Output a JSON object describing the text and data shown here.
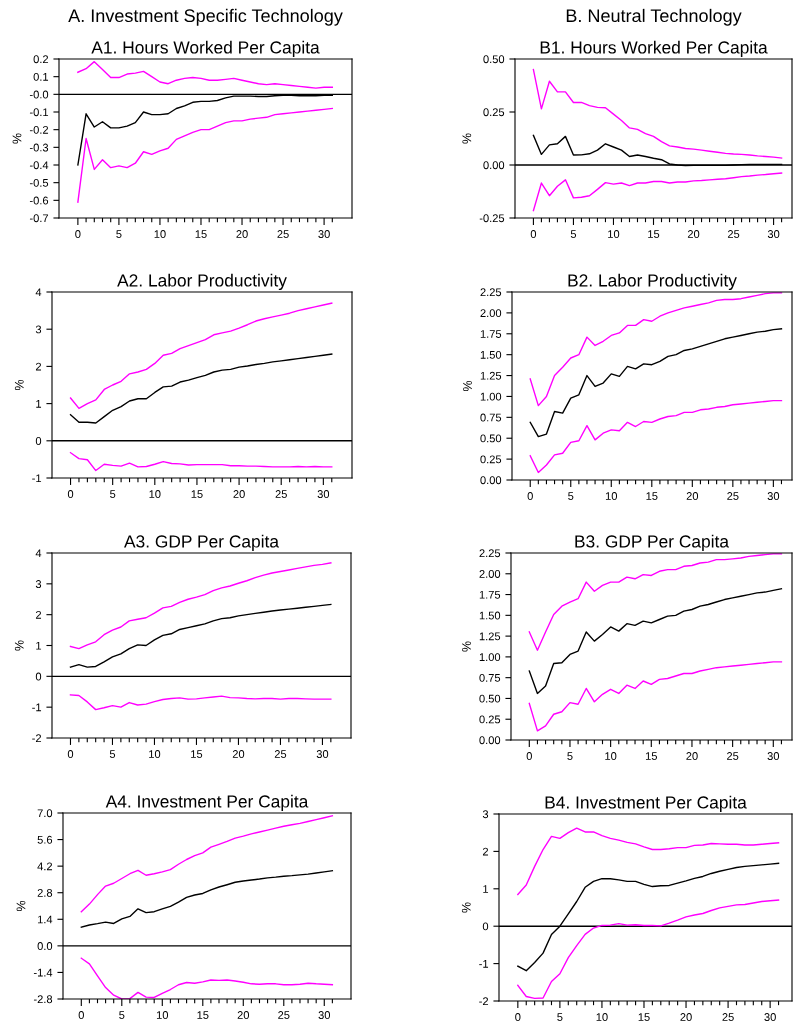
{
  "chart_data": [
    {
      "type": "line",
      "annotations": [
        "A. Investment Specific Technology"
      ],
      "title": "A1. Hours Worked Per Capita",
      "ylabel": "%",
      "x": [
        0,
        1,
        2,
        3,
        4,
        5,
        6,
        7,
        8,
        9,
        10,
        11,
        12,
        13,
        14,
        15,
        16,
        17,
        18,
        19,
        20,
        21,
        22,
        23,
        24,
        25,
        26,
        27,
        28,
        29,
        30,
        31
      ],
      "xlim": [
        -2.3,
        33.4
      ],
      "xticks": [
        0,
        {
          "value": 1,
          "label": null
        },
        {
          "value": 2,
          "label": null
        },
        {
          "value": 3,
          "label": null
        },
        {
          "value": 4,
          "label": null
        },
        5,
        {
          "value": 6,
          "label": null
        },
        {
          "value": 7,
          "label": null
        },
        {
          "value": 8,
          "label": null
        },
        {
          "value": 9,
          "label": null
        },
        10,
        {
          "value": 11,
          "label": null
        },
        {
          "value": 12,
          "label": null
        },
        {
          "value": 13,
          "label": null
        },
        {
          "value": 14,
          "label": null
        },
        15,
        {
          "value": 16,
          "label": null
        },
        {
          "value": 17,
          "label": null
        },
        {
          "value": 18,
          "label": null
        },
        {
          "value": 19,
          "label": null
        },
        20,
        {
          "value": 21,
          "label": null
        },
        {
          "value": 22,
          "label": null
        },
        {
          "value": 23,
          "label": null
        },
        {
          "value": 24,
          "label": null
        },
        25,
        {
          "value": 26,
          "label": null
        },
        {
          "value": 27,
          "label": null
        },
        {
          "value": 28,
          "label": null
        },
        {
          "value": 29,
          "label": null
        },
        30,
        {
          "value": 31,
          "label": null
        }
      ],
      "ylim": [
        -0.7,
        0.2
      ],
      "yticks": [
        0.2,
        0.1,
        {
          "value": 0,
          "label": "-0.0"
        },
        -0.1,
        -0.2,
        -0.3,
        -0.4,
        -0.5,
        -0.6,
        -0.7
      ],
      "ref_lines": [
        {
          "axis": "y",
          "value": 0,
          "color": "#000000"
        }
      ],
      "series": [
        {
          "color": "#ff00ff",
          "values": [
            0.125,
            0.145,
            0.185,
            0.14,
            0.095,
            0.095,
            0.115,
            0.12,
            0.13,
            0.1,
            0.07,
            0.06,
            0.08,
            0.09,
            0.095,
            0.09,
            0.08,
            0.08,
            0.085,
            0.09,
            0.08,
            0.07,
            0.06,
            0.055,
            0.06,
            0.055,
            0.05,
            0.045,
            0.04,
            0.035,
            0.04,
            0.04
          ]
        },
        {
          "color": "#000000",
          "values": [
            -0.4,
            -0.11,
            -0.185,
            -0.155,
            -0.19,
            -0.19,
            -0.18,
            -0.16,
            -0.1,
            -0.115,
            -0.115,
            -0.11,
            -0.08,
            -0.065,
            -0.045,
            -0.04,
            -0.04,
            -0.035,
            -0.02,
            -0.01,
            -0.01,
            -0.01,
            -0.012,
            -0.012,
            -0.008,
            -0.005,
            -0.005,
            -0.008,
            -0.008,
            -0.008,
            -0.006,
            -0.005
          ]
        },
        {
          "color": "#ff00ff",
          "values": [
            -0.61,
            -0.25,
            -0.425,
            -0.37,
            -0.415,
            -0.405,
            -0.415,
            -0.39,
            -0.325,
            -0.34,
            -0.32,
            -0.305,
            -0.255,
            -0.235,
            -0.215,
            -0.2,
            -0.2,
            -0.18,
            -0.16,
            -0.15,
            -0.15,
            -0.14,
            -0.135,
            -0.13,
            -0.115,
            -0.11,
            -0.105,
            -0.1,
            -0.095,
            -0.09,
            -0.085,
            -0.08
          ]
        }
      ]
    },
    {
      "type": "line",
      "annotations": [
        "B. Neutral Technology"
      ],
      "title": "B1. Hours Worked Per Capita",
      "ylabel": "%",
      "x": [
        0,
        1,
        2,
        3,
        4,
        5,
        6,
        7,
        8,
        9,
        10,
        11,
        12,
        13,
        14,
        15,
        16,
        17,
        18,
        19,
        20,
        21,
        22,
        23,
        24,
        25,
        26,
        27,
        28,
        29,
        30,
        31
      ],
      "xlim": [
        -2.3,
        32.3
      ],
      "xticks": [
        0,
        {
          "value": 1,
          "label": null
        },
        {
          "value": 2,
          "label": null
        },
        {
          "value": 3,
          "label": null
        },
        {
          "value": 4,
          "label": null
        },
        5,
        {
          "value": 6,
          "label": null
        },
        {
          "value": 7,
          "label": null
        },
        {
          "value": 8,
          "label": null
        },
        {
          "value": 9,
          "label": null
        },
        10,
        {
          "value": 11,
          "label": null
        },
        {
          "value": 12,
          "label": null
        },
        {
          "value": 13,
          "label": null
        },
        {
          "value": 14,
          "label": null
        },
        15,
        {
          "value": 16,
          "label": null
        },
        {
          "value": 17,
          "label": null
        },
        {
          "value": 18,
          "label": null
        },
        {
          "value": 19,
          "label": null
        },
        20,
        {
          "value": 21,
          "label": null
        },
        {
          "value": 22,
          "label": null
        },
        {
          "value": 23,
          "label": null
        },
        {
          "value": 24,
          "label": null
        },
        25,
        {
          "value": 26,
          "label": null
        },
        {
          "value": 27,
          "label": null
        },
        {
          "value": 28,
          "label": null
        },
        {
          "value": 29,
          "label": null
        },
        30,
        {
          "value": 31,
          "label": null
        }
      ],
      "ylim": [
        -0.25,
        0.5
      ],
      "yticks": [
        {
          "value": 0.5,
          "label": "0.50"
        },
        0.25,
        {
          "value": 0,
          "label": "0.00"
        },
        -0.25
      ],
      "ref_lines": [
        {
          "axis": "y",
          "value": 0,
          "color": "#000000"
        }
      ],
      "series": [
        {
          "color": "#ff00ff",
          "values": [
            0.45,
            0.265,
            0.395,
            0.345,
            0.345,
            0.295,
            0.295,
            0.28,
            0.272,
            0.27,
            0.24,
            0.21,
            0.175,
            0.168,
            0.148,
            0.135,
            0.11,
            0.09,
            0.085,
            0.078,
            0.075,
            0.07,
            0.065,
            0.06,
            0.055,
            0.052,
            0.05,
            0.047,
            0.043,
            0.04,
            0.037,
            0.033
          ]
        },
        {
          "color": "#000000",
          "values": [
            0.14,
            0.05,
            0.095,
            0.1,
            0.135,
            0.047,
            0.048,
            0.053,
            0.07,
            0.1,
            0.085,
            0.07,
            0.04,
            0.047,
            0.04,
            0.032,
            0.025,
            0.005,
            0.0,
            -0.003,
            -0.002,
            -0.002,
            -0.002,
            -0.002,
            -0.002,
            0.0,
            0.002,
            0.003,
            0.003,
            0.003,
            0.003,
            0.003
          ]
        },
        {
          "color": "#ff00ff",
          "values": [
            -0.215,
            -0.085,
            -0.145,
            -0.1,
            -0.07,
            -0.155,
            -0.152,
            -0.145,
            -0.115,
            -0.083,
            -0.09,
            -0.085,
            -0.097,
            -0.085,
            -0.085,
            -0.078,
            -0.078,
            -0.085,
            -0.08,
            -0.08,
            -0.075,
            -0.073,
            -0.07,
            -0.067,
            -0.065,
            -0.06,
            -0.055,
            -0.052,
            -0.048,
            -0.045,
            -0.041,
            -0.038
          ]
        }
      ]
    },
    {
      "type": "line",
      "title": "A2. Labor Productivity",
      "ylabel": "%",
      "x": [
        0,
        1,
        2,
        3,
        4,
        5,
        6,
        7,
        8,
        9,
        10,
        11,
        12,
        13,
        14,
        15,
        16,
        17,
        18,
        19,
        20,
        21,
        22,
        23,
        24,
        25,
        26,
        27,
        28,
        29,
        30,
        31
      ],
      "xlim": [
        -2.2,
        33.4
      ],
      "xticks": [
        0,
        {
          "value": 1,
          "label": null
        },
        {
          "value": 2,
          "label": null
        },
        {
          "value": 3,
          "label": null
        },
        {
          "value": 4,
          "label": null
        },
        5,
        {
          "value": 6,
          "label": null
        },
        {
          "value": 7,
          "label": null
        },
        {
          "value": 8,
          "label": null
        },
        {
          "value": 9,
          "label": null
        },
        10,
        {
          "value": 11,
          "label": null
        },
        {
          "value": 12,
          "label": null
        },
        {
          "value": 13,
          "label": null
        },
        {
          "value": 14,
          "label": null
        },
        15,
        {
          "value": 16,
          "label": null
        },
        {
          "value": 17,
          "label": null
        },
        {
          "value": 18,
          "label": null
        },
        {
          "value": 19,
          "label": null
        },
        20,
        {
          "value": 21,
          "label": null
        },
        {
          "value": 22,
          "label": null
        },
        {
          "value": 23,
          "label": null
        },
        {
          "value": 24,
          "label": null
        },
        25,
        {
          "value": 26,
          "label": null
        },
        {
          "value": 27,
          "label": null
        },
        {
          "value": 28,
          "label": null
        },
        {
          "value": 29,
          "label": null
        },
        30,
        {
          "value": 31,
          "label": null
        }
      ],
      "ylim": [
        -1,
        4
      ],
      "yticks": [
        4,
        3,
        2,
        1,
        0,
        -1
      ],
      "ref_lines": [
        {
          "axis": "y",
          "value": 0,
          "color": "#000000"
        }
      ],
      "series": [
        {
          "color": "#ff00ff",
          "values": [
            1.15,
            0.87,
            1.0,
            1.1,
            1.38,
            1.5,
            1.6,
            1.8,
            1.85,
            1.92,
            2.08,
            2.3,
            2.35,
            2.48,
            2.56,
            2.64,
            2.72,
            2.85,
            2.9,
            2.95,
            3.03,
            3.12,
            3.22,
            3.28,
            3.33,
            3.38,
            3.43,
            3.5,
            3.55,
            3.6,
            3.65,
            3.7
          ]
        },
        {
          "color": "#000000",
          "values": [
            0.7,
            0.5,
            0.5,
            0.48,
            0.65,
            0.82,
            0.92,
            1.07,
            1.13,
            1.13,
            1.3,
            1.45,
            1.47,
            1.58,
            1.63,
            1.7,
            1.76,
            1.85,
            1.9,
            1.92,
            1.98,
            2.01,
            2.05,
            2.08,
            2.12,
            2.15,
            2.18,
            2.21,
            2.24,
            2.27,
            2.3,
            2.33
          ]
        },
        {
          "color": "#ff00ff",
          "values": [
            -0.32,
            -0.48,
            -0.51,
            -0.8,
            -0.63,
            -0.66,
            -0.68,
            -0.6,
            -0.7,
            -0.69,
            -0.63,
            -0.56,
            -0.61,
            -0.62,
            -0.65,
            -0.64,
            -0.64,
            -0.64,
            -0.64,
            -0.67,
            -0.67,
            -0.68,
            -0.68,
            -0.69,
            -0.7,
            -0.7,
            -0.7,
            -0.69,
            -0.7,
            -0.69,
            -0.7,
            -0.7
          ]
        }
      ]
    },
    {
      "type": "line",
      "title": "B2. Labor Productivity",
      "ylabel": "%",
      "x": [
        0,
        1,
        2,
        3,
        4,
        5,
        6,
        7,
        8,
        9,
        10,
        11,
        12,
        13,
        14,
        15,
        16,
        17,
        18,
        19,
        20,
        21,
        22,
        23,
        24,
        25,
        26,
        27,
        28,
        29,
        30,
        31
      ],
      "xlim": [
        -2.25,
        32.3
      ],
      "xticks": [
        0,
        {
          "value": 1,
          "label": null
        },
        {
          "value": 2,
          "label": null
        },
        {
          "value": 3,
          "label": null
        },
        {
          "value": 4,
          "label": null
        },
        5,
        {
          "value": 6,
          "label": null
        },
        {
          "value": 7,
          "label": null
        },
        {
          "value": 8,
          "label": null
        },
        {
          "value": 9,
          "label": null
        },
        10,
        {
          "value": 11,
          "label": null
        },
        {
          "value": 12,
          "label": null
        },
        {
          "value": 13,
          "label": null
        },
        {
          "value": 14,
          "label": null
        },
        15,
        {
          "value": 16,
          "label": null
        },
        {
          "value": 17,
          "label": null
        },
        {
          "value": 18,
          "label": null
        },
        {
          "value": 19,
          "label": null
        },
        20,
        {
          "value": 21,
          "label": null
        },
        {
          "value": 22,
          "label": null
        },
        {
          "value": 23,
          "label": null
        },
        {
          "value": 24,
          "label": null
        },
        25,
        {
          "value": 26,
          "label": null
        },
        {
          "value": 27,
          "label": null
        },
        {
          "value": 28,
          "label": null
        },
        {
          "value": 29,
          "label": null
        },
        30,
        {
          "value": 31,
          "label": null
        }
      ],
      "ylim": [
        0,
        2.25
      ],
      "yticks": [
        2.25,
        {
          "value": 2,
          "label": "2.00"
        },
        1.75,
        {
          "value": 1.5,
          "label": "1.50"
        },
        1.25,
        {
          "value": 1,
          "label": "1.00"
        },
        0.75,
        {
          "value": 0.5,
          "label": "0.50"
        },
        0.25,
        {
          "value": 0,
          "label": "0.00"
        }
      ],
      "series": [
        {
          "color": "#ff00ff",
          "values": [
            1.21,
            0.89,
            1.0,
            1.25,
            1.35,
            1.46,
            1.5,
            1.71,
            1.61,
            1.66,
            1.73,
            1.76,
            1.85,
            1.85,
            1.92,
            1.9,
            1.96,
            2.0,
            2.03,
            2.06,
            2.08,
            2.1,
            2.12,
            2.15,
            2.16,
            2.16,
            2.17,
            2.19,
            2.21,
            2.23,
            2.24,
            2.24
          ]
        },
        {
          "color": "#000000",
          "values": [
            0.69,
            0.52,
            0.55,
            0.82,
            0.8,
            0.98,
            1.02,
            1.25,
            1.12,
            1.16,
            1.27,
            1.24,
            1.36,
            1.33,
            1.39,
            1.38,
            1.42,
            1.48,
            1.5,
            1.55,
            1.57,
            1.6,
            1.63,
            1.66,
            1.69,
            1.71,
            1.73,
            1.75,
            1.77,
            1.78,
            1.8,
            1.81
          ]
        },
        {
          "color": "#ff00ff",
          "values": [
            0.29,
            0.09,
            0.18,
            0.3,
            0.32,
            0.45,
            0.47,
            0.65,
            0.48,
            0.56,
            0.6,
            0.59,
            0.69,
            0.64,
            0.7,
            0.69,
            0.73,
            0.76,
            0.77,
            0.81,
            0.81,
            0.84,
            0.85,
            0.87,
            0.88,
            0.9,
            0.91,
            0.92,
            0.93,
            0.94,
            0.95,
            0.95
          ]
        }
      ]
    },
    {
      "type": "line",
      "title": "A3. GDP Per Capita",
      "ylabel": "%",
      "x": [
        0,
        1,
        2,
        3,
        4,
        5,
        6,
        7,
        8,
        9,
        10,
        11,
        12,
        13,
        14,
        15,
        16,
        17,
        18,
        19,
        20,
        21,
        22,
        23,
        24,
        25,
        26,
        27,
        28,
        29,
        30,
        31
      ],
      "xlim": [
        -2.2,
        33.4
      ],
      "xticks": [
        0,
        {
          "value": 1,
          "label": null
        },
        {
          "value": 2,
          "label": null
        },
        {
          "value": 3,
          "label": null
        },
        {
          "value": 4,
          "label": null
        },
        5,
        {
          "value": 6,
          "label": null
        },
        {
          "value": 7,
          "label": null
        },
        {
          "value": 8,
          "label": null
        },
        {
          "value": 9,
          "label": null
        },
        10,
        {
          "value": 11,
          "label": null
        },
        {
          "value": 12,
          "label": null
        },
        {
          "value": 13,
          "label": null
        },
        {
          "value": 14,
          "label": null
        },
        15,
        {
          "value": 16,
          "label": null
        },
        {
          "value": 17,
          "label": null
        },
        {
          "value": 18,
          "label": null
        },
        {
          "value": 19,
          "label": null
        },
        20,
        {
          "value": 21,
          "label": null
        },
        {
          "value": 22,
          "label": null
        },
        {
          "value": 23,
          "label": null
        },
        {
          "value": 24,
          "label": null
        },
        25,
        {
          "value": 26,
          "label": null
        },
        {
          "value": 27,
          "label": null
        },
        {
          "value": 28,
          "label": null
        },
        {
          "value": 29,
          "label": null
        },
        30,
        {
          "value": 31,
          "label": null
        }
      ],
      "ylim": [
        -2,
        4
      ],
      "yticks": [
        4,
        3,
        2,
        1,
        0,
        -1,
        -2
      ],
      "ref_lines": [
        {
          "axis": "y",
          "value": 0,
          "color": "#000000"
        }
      ],
      "series": [
        {
          "color": "#ff00ff",
          "values": [
            0.97,
            0.9,
            1.02,
            1.12,
            1.35,
            1.5,
            1.6,
            1.8,
            1.85,
            1.9,
            2.05,
            2.22,
            2.27,
            2.4,
            2.5,
            2.57,
            2.65,
            2.78,
            2.87,
            2.93,
            3.02,
            3.1,
            3.2,
            3.28,
            3.35,
            3.4,
            3.45,
            3.5,
            3.55,
            3.6,
            3.63,
            3.68
          ]
        },
        {
          "color": "#000000",
          "values": [
            0.3,
            0.38,
            0.3,
            0.32,
            0.47,
            0.63,
            0.73,
            0.9,
            1.02,
            1.0,
            1.18,
            1.33,
            1.38,
            1.52,
            1.58,
            1.64,
            1.7,
            1.8,
            1.87,
            1.9,
            1.96,
            2.0,
            2.04,
            2.08,
            2.12,
            2.15,
            2.18,
            2.21,
            2.24,
            2.27,
            2.3,
            2.33
          ]
        },
        {
          "color": "#ff00ff",
          "values": [
            -0.6,
            -0.62,
            -0.83,
            -1.08,
            -1.02,
            -0.95,
            -1.0,
            -0.85,
            -0.93,
            -0.9,
            -0.82,
            -0.75,
            -0.72,
            -0.7,
            -0.74,
            -0.73,
            -0.7,
            -0.67,
            -0.64,
            -0.69,
            -0.7,
            -0.72,
            -0.73,
            -0.72,
            -0.72,
            -0.74,
            -0.72,
            -0.72,
            -0.73,
            -0.74,
            -0.74,
            -0.74
          ]
        }
      ]
    },
    {
      "type": "line",
      "title": "B3. GDP Per Capita",
      "ylabel": "%",
      "x": [
        0,
        1,
        2,
        3,
        4,
        5,
        6,
        7,
        8,
        9,
        10,
        11,
        12,
        13,
        14,
        15,
        16,
        17,
        18,
        19,
        20,
        21,
        22,
        23,
        24,
        25,
        26,
        27,
        28,
        29,
        30,
        31
      ],
      "xlim": [
        -2.25,
        32.3
      ],
      "xticks": [
        0,
        {
          "value": 1,
          "label": null
        },
        {
          "value": 2,
          "label": null
        },
        {
          "value": 3,
          "label": null
        },
        {
          "value": 4,
          "label": null
        },
        5,
        {
          "value": 6,
          "label": null
        },
        {
          "value": 7,
          "label": null
        },
        {
          "value": 8,
          "label": null
        },
        {
          "value": 9,
          "label": null
        },
        10,
        {
          "value": 11,
          "label": null
        },
        {
          "value": 12,
          "label": null
        },
        {
          "value": 13,
          "label": null
        },
        {
          "value": 14,
          "label": null
        },
        15,
        {
          "value": 16,
          "label": null
        },
        {
          "value": 17,
          "label": null
        },
        {
          "value": 18,
          "label": null
        },
        {
          "value": 19,
          "label": null
        },
        20,
        {
          "value": 21,
          "label": null
        },
        {
          "value": 22,
          "label": null
        },
        {
          "value": 23,
          "label": null
        },
        {
          "value": 24,
          "label": null
        },
        25,
        {
          "value": 26,
          "label": null
        },
        {
          "value": 27,
          "label": null
        },
        {
          "value": 28,
          "label": null
        },
        {
          "value": 29,
          "label": null
        },
        30,
        {
          "value": 31,
          "label": null
        }
      ],
      "ylim": [
        0,
        2.25
      ],
      "yticks": [
        2.25,
        {
          "value": 2,
          "label": "2.00"
        },
        1.75,
        {
          "value": 1.5,
          "label": "1.50"
        },
        1.25,
        {
          "value": 1,
          "label": "1.00"
        },
        0.75,
        {
          "value": 0.5,
          "label": "0.50"
        },
        0.25,
        {
          "value": 0,
          "label": "0.00"
        }
      ],
      "series": [
        {
          "color": "#ff00ff",
          "values": [
            1.3,
            1.08,
            1.3,
            1.51,
            1.61,
            1.66,
            1.7,
            1.9,
            1.79,
            1.86,
            1.9,
            1.9,
            1.96,
            1.94,
            1.99,
            1.98,
            2.03,
            2.05,
            2.05,
            2.09,
            2.1,
            2.13,
            2.14,
            2.17,
            2.17,
            2.18,
            2.19,
            2.21,
            2.22,
            2.23,
            2.24,
            2.24
          ]
        },
        {
          "color": "#000000",
          "values": [
            0.83,
            0.56,
            0.65,
            0.92,
            0.93,
            1.03,
            1.07,
            1.3,
            1.19,
            1.27,
            1.36,
            1.31,
            1.4,
            1.38,
            1.43,
            1.41,
            1.45,
            1.49,
            1.5,
            1.55,
            1.57,
            1.61,
            1.63,
            1.66,
            1.69,
            1.71,
            1.73,
            1.75,
            1.77,
            1.78,
            1.8,
            1.82
          ]
        },
        {
          "color": "#ff00ff",
          "values": [
            0.44,
            0.11,
            0.17,
            0.31,
            0.34,
            0.45,
            0.43,
            0.62,
            0.46,
            0.55,
            0.61,
            0.56,
            0.66,
            0.62,
            0.71,
            0.67,
            0.73,
            0.74,
            0.77,
            0.8,
            0.8,
            0.83,
            0.85,
            0.87,
            0.88,
            0.89,
            0.9,
            0.91,
            0.92,
            0.93,
            0.94,
            0.94
          ]
        }
      ]
    },
    {
      "type": "line",
      "title": "A4. Investment Per Capita",
      "ylabel": "%",
      "x": [
        0,
        1,
        2,
        3,
        4,
        5,
        6,
        7,
        8,
        9,
        10,
        11,
        12,
        13,
        14,
        15,
        16,
        17,
        18,
        19,
        20,
        21,
        22,
        23,
        24,
        25,
        26,
        27,
        28,
        29,
        30,
        31
      ],
      "xlim": [
        -2.26,
        33.3
      ],
      "xticks": [
        0,
        {
          "value": 1,
          "label": null
        },
        {
          "value": 2,
          "label": null
        },
        {
          "value": 3,
          "label": null
        },
        {
          "value": 4,
          "label": null
        },
        5,
        {
          "value": 6,
          "label": null
        },
        {
          "value": 7,
          "label": null
        },
        {
          "value": 8,
          "label": null
        },
        {
          "value": 9,
          "label": null
        },
        10,
        {
          "value": 11,
          "label": null
        },
        {
          "value": 12,
          "label": null
        },
        {
          "value": 13,
          "label": null
        },
        {
          "value": 14,
          "label": null
        },
        15,
        {
          "value": 16,
          "label": null
        },
        {
          "value": 17,
          "label": null
        },
        {
          "value": 18,
          "label": null
        },
        {
          "value": 19,
          "label": null
        },
        20,
        {
          "value": 21,
          "label": null
        },
        {
          "value": 22,
          "label": null
        },
        {
          "value": 23,
          "label": null
        },
        {
          "value": 24,
          "label": null
        },
        25,
        {
          "value": 26,
          "label": null
        },
        {
          "value": 27,
          "label": null
        },
        {
          "value": 28,
          "label": null
        },
        {
          "value": 29,
          "label": null
        },
        30,
        {
          "value": 31,
          "label": null
        }
      ],
      "ylim": [
        -2.8,
        7.0
      ],
      "yticks": [
        {
          "value": 7,
          "label": "7.0"
        },
        5.6,
        4.2,
        2.8,
        1.4,
        {
          "value": 0,
          "label": "0.0"
        },
        -1.4,
        -2.8
      ],
      "ref_lines": [
        {
          "axis": "y",
          "value": 0,
          "color": "#000000"
        }
      ],
      "series": [
        {
          "color": "#ff00ff",
          "values": [
            1.8,
            2.2,
            2.7,
            3.15,
            3.3,
            3.55,
            3.8,
            3.98,
            3.72,
            3.8,
            3.9,
            4.02,
            4.3,
            4.55,
            4.75,
            4.9,
            5.2,
            5.35,
            5.5,
            5.68,
            5.78,
            5.9,
            6.0,
            6.1,
            6.2,
            6.3,
            6.38,
            6.45,
            6.55,
            6.65,
            6.75,
            6.85
          ]
        },
        {
          "color": "#000000",
          "values": [
            0.98,
            1.1,
            1.17,
            1.25,
            1.18,
            1.42,
            1.55,
            1.95,
            1.75,
            1.8,
            1.95,
            2.08,
            2.3,
            2.55,
            2.68,
            2.76,
            2.95,
            3.1,
            3.22,
            3.35,
            3.42,
            3.47,
            3.52,
            3.58,
            3.62,
            3.67,
            3.7,
            3.74,
            3.78,
            3.84,
            3.9,
            3.96
          ]
        },
        {
          "color": "#ff00ff",
          "values": [
            -0.65,
            -0.95,
            -1.58,
            -2.2,
            -2.6,
            -2.8,
            -2.78,
            -2.45,
            -2.7,
            -2.72,
            -2.5,
            -2.3,
            -2.05,
            -1.93,
            -1.97,
            -1.9,
            -1.8,
            -1.82,
            -1.8,
            -1.85,
            -1.92,
            -2.0,
            -2.02,
            -2.0,
            -2.0,
            -2.05,
            -2.05,
            -2.02,
            -1.97,
            -2.0,
            -2.02,
            -2.05
          ]
        }
      ]
    },
    {
      "type": "line",
      "title": "B4. Investment Per Capita",
      "ylabel": "%",
      "x": [
        0,
        1,
        2,
        3,
        4,
        5,
        6,
        7,
        8,
        9,
        10,
        11,
        12,
        13,
        14,
        15,
        16,
        17,
        18,
        19,
        20,
        21,
        22,
        23,
        24,
        25,
        26,
        27,
        28,
        29,
        30,
        31
      ],
      "xlim": [
        -2.24,
        32.6
      ],
      "xticks": [
        0,
        {
          "value": 1,
          "label": null
        },
        {
          "value": 2,
          "label": null
        },
        {
          "value": 3,
          "label": null
        },
        {
          "value": 4,
          "label": null
        },
        5,
        {
          "value": 6,
          "label": null
        },
        {
          "value": 7,
          "label": null
        },
        {
          "value": 8,
          "label": null
        },
        {
          "value": 9,
          "label": null
        },
        10,
        {
          "value": 11,
          "label": null
        },
        {
          "value": 12,
          "label": null
        },
        {
          "value": 13,
          "label": null
        },
        {
          "value": 14,
          "label": null
        },
        15,
        {
          "value": 16,
          "label": null
        },
        {
          "value": 17,
          "label": null
        },
        {
          "value": 18,
          "label": null
        },
        {
          "value": 19,
          "label": null
        },
        20,
        {
          "value": 21,
          "label": null
        },
        {
          "value": 22,
          "label": null
        },
        {
          "value": 23,
          "label": null
        },
        {
          "value": 24,
          "label": null
        },
        25,
        {
          "value": 26,
          "label": null
        },
        {
          "value": 27,
          "label": null
        },
        {
          "value": 28,
          "label": null
        },
        {
          "value": 29,
          "label": null
        },
        30,
        {
          "value": 31,
          "label": null
        }
      ],
      "ylim": [
        -2,
        3
      ],
      "yticks": [
        3,
        2,
        1,
        0,
        -1,
        -2
      ],
      "ref_lines": [
        {
          "axis": "y",
          "value": 0,
          "color": "#000000"
        }
      ],
      "series": [
        {
          "color": "#ff00ff",
          "values": [
            0.85,
            1.1,
            1.6,
            2.05,
            2.4,
            2.35,
            2.5,
            2.62,
            2.52,
            2.52,
            2.42,
            2.35,
            2.3,
            2.24,
            2.2,
            2.12,
            2.05,
            2.05,
            2.07,
            2.1,
            2.1,
            2.16,
            2.17,
            2.21,
            2.2,
            2.19,
            2.19,
            2.17,
            2.17,
            2.19,
            2.21,
            2.23
          ]
        },
        {
          "color": "#000000",
          "values": [
            -1.07,
            -1.19,
            -0.97,
            -0.72,
            -0.22,
            0.0,
            0.33,
            0.66,
            1.04,
            1.2,
            1.27,
            1.27,
            1.24,
            1.2,
            1.2,
            1.12,
            1.06,
            1.08,
            1.09,
            1.15,
            1.21,
            1.28,
            1.33,
            1.41,
            1.47,
            1.52,
            1.57,
            1.6,
            1.62,
            1.64,
            1.66,
            1.68
          ]
        },
        {
          "color": "#ff00ff",
          "values": [
            -1.58,
            -1.88,
            -1.93,
            -1.92,
            -1.48,
            -1.27,
            -0.84,
            -0.52,
            -0.22,
            -0.05,
            0.02,
            0.03,
            0.07,
            0.03,
            0.04,
            0.02,
            0.02,
            0.01,
            0.08,
            0.16,
            0.25,
            0.3,
            0.34,
            0.42,
            0.49,
            0.53,
            0.57,
            0.58,
            0.62,
            0.66,
            0.68,
            0.7
          ]
        }
      ]
    }
  ]
}
